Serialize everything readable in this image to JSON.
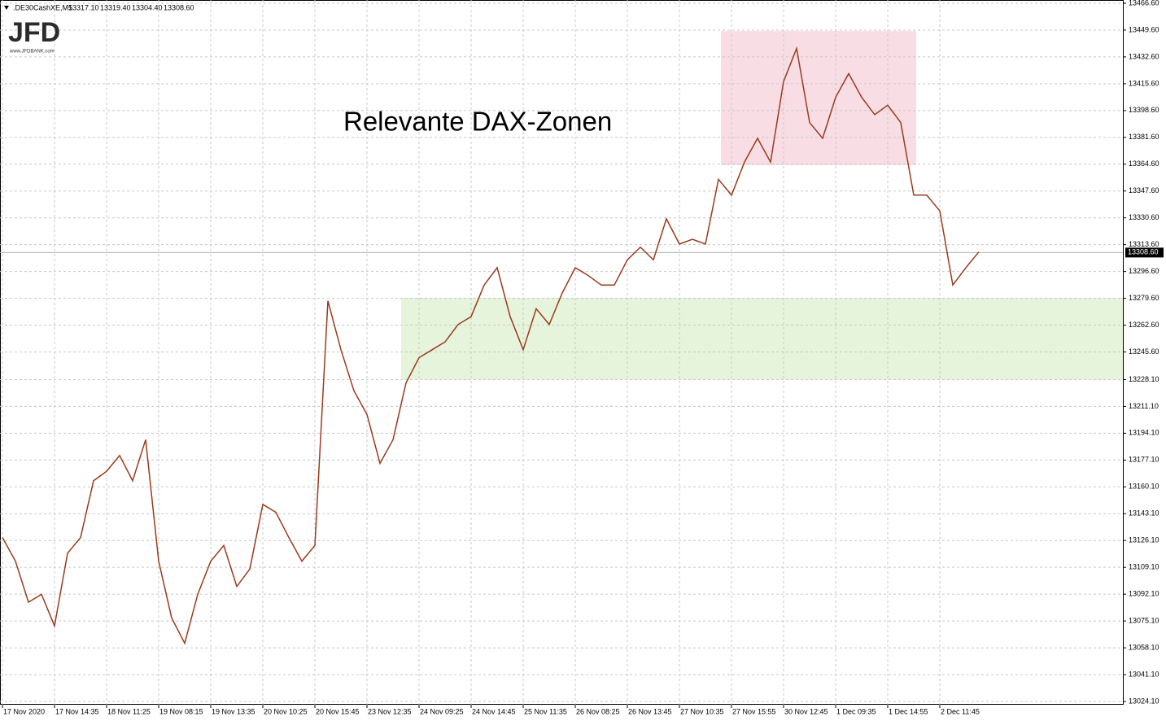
{
  "chart_data": {
    "type": "line",
    "header": ".DE30CashXE,M5",
    "header_prices": [
      "13317.10",
      "13319.40",
      "13304.40",
      "13308.60"
    ],
    "watermark": "JFD",
    "watermark_url": "www.JFDBANK.com",
    "annotation": "Relevante DAX-Zonen",
    "categories": [
      "17 Nov 2020",
      null,
      null,
      null,
      "17 Nov 14:35",
      null,
      null,
      null,
      "18 Nov 11:25",
      null,
      null,
      null,
      "19 Nov 08:15",
      null,
      null,
      null,
      "19 Nov 13:35",
      null,
      null,
      null,
      "20 Nov 10:25",
      null,
      null,
      null,
      "20 Nov 15:45",
      null,
      null,
      null,
      "23 Nov 12:35",
      null,
      null,
      null,
      "24 Nov 09:25",
      null,
      null,
      null,
      "24 Nov 14:45",
      null,
      null,
      null,
      "25 Nov 11:35",
      null,
      null,
      null,
      "26 Nov 08:25",
      null,
      null,
      null,
      "26 Nov 13:45",
      null,
      null,
      null,
      "27 Nov 10:35",
      null,
      null,
      null,
      "27 Nov 15:55",
      null,
      null,
      null,
      "30 Nov 12:45",
      null,
      null,
      null,
      "1 Dec 09:35",
      null,
      null,
      null,
      "1 Dec 14:55",
      null,
      null,
      null,
      "2 Dec 11:45",
      null,
      null,
      null
    ],
    "series": [
      {
        "name": "DE30",
        "color": "#9a3b1c",
        "values": [
          13128,
          13113,
          13087,
          13092,
          13072,
          13118,
          13128,
          13164,
          13170,
          13180,
          13164,
          13190,
          13113,
          13077,
          13061,
          13092,
          13113,
          13123,
          13097,
          13108,
          13149,
          13144,
          13128,
          13113,
          13123,
          13278,
          13247,
          13221,
          13206,
          13175,
          13190,
          13226,
          13242,
          13247,
          13252,
          13263,
          13268,
          13288,
          13299,
          13268,
          13247,
          13273,
          13263,
          13283,
          13299,
          13294,
          13288,
          13288,
          13304,
          13312,
          13304,
          13330,
          13314,
          13317,
          13314,
          13355,
          13345,
          13366,
          13381,
          13366,
          13417,
          13438,
          13391,
          13381,
          13407,
          13422,
          13407,
          13396,
          13402,
          13391,
          13345,
          13345,
          13335,
          13288,
          13299,
          13309
        ]
      }
    ],
    "last_price": {
      "value": 13308.6,
      "label": "13308.60"
    },
    "zones": [
      {
        "color": "#f8dde5",
        "range": [
          13364,
          13449
        ]
      },
      {
        "color": "#e6f4dc",
        "range": [
          13228,
          13280
        ]
      }
    ],
    "ylim": [
      13024.1,
      13466.6
    ],
    "yticks": [
      {
        "value": 13024.1,
        "label": "13024.10"
      },
      {
        "value": 13041.1,
        "label": "13041.10"
      },
      {
        "value": 13058.1,
        "label": "13058.10"
      },
      {
        "value": 13075.1,
        "label": "13075.10"
      },
      {
        "value": 13092.1,
        "label": "13092.10"
      },
      {
        "value": 13109.1,
        "label": "13109.10"
      },
      {
        "value": 13126.1,
        "label": "13126.10"
      },
      {
        "value": 13143.1,
        "label": "13143.10"
      },
      {
        "value": 13160.1,
        "label": "13160.10"
      },
      {
        "value": 13177.1,
        "label": "13177.10"
      },
      {
        "value": 13194.1,
        "label": "13194.10"
      },
      {
        "value": 13211.1,
        "label": "13211.10"
      },
      {
        "value": 13228.1,
        "label": "13228.10"
      },
      {
        "value": 13245.6,
        "label": "13245.60"
      },
      {
        "value": 13262.6,
        "label": "13262.60"
      },
      {
        "value": 13279.6,
        "label": "13279.60"
      },
      {
        "value": 13296.6,
        "label": "13296.60"
      },
      {
        "value": 13313.6,
        "label": "13313.60"
      },
      {
        "value": 13330.6,
        "label": "13330.60"
      },
      {
        "value": 13347.6,
        "label": "13347.60"
      },
      {
        "value": 13364.6,
        "label": "13364.60"
      },
      {
        "value": 13381.6,
        "label": "13381.60"
      },
      {
        "value": 13398.6,
        "label": "13398.60"
      },
      {
        "value": 13415.6,
        "label": "13415.60"
      },
      {
        "value": 13432.6,
        "label": "13432.60"
      },
      {
        "value": 13449.6,
        "label": "13449.60"
      },
      {
        "value": 13466.6,
        "label": "13466.60"
      }
    ],
    "grid": true
  }
}
